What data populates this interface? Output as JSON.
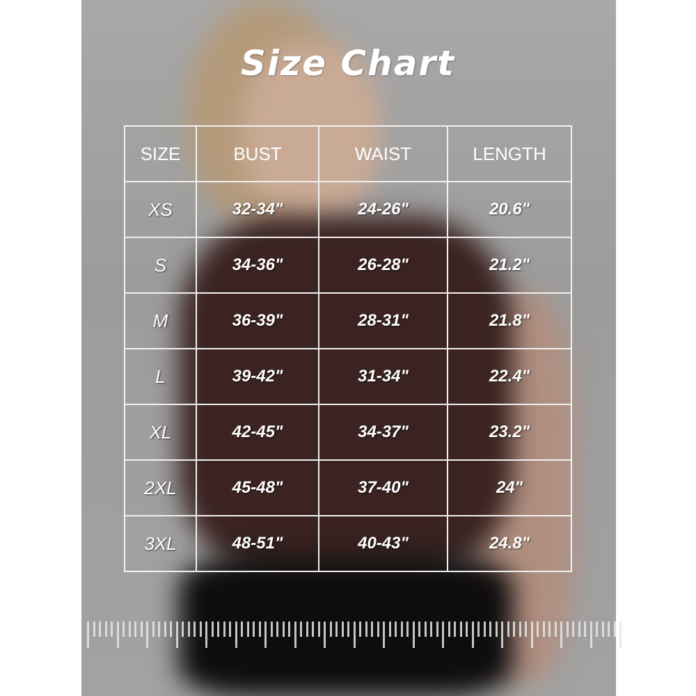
{
  "title": "Size Chart",
  "table": {
    "headers": [
      "SIZE",
      "BUST",
      "WAIST",
      "LENGTH"
    ],
    "rows": [
      [
        "XS",
        "32-34\"",
        "24-26\"",
        "20.6\""
      ],
      [
        "S",
        "34-36\"",
        "26-28\"",
        "21.2\""
      ],
      [
        "M",
        "36-39\"",
        "28-31\"",
        "21.8\""
      ],
      [
        "L",
        "39-42\"",
        "31-34\"",
        "22.4\""
      ],
      [
        "XL",
        "42-45\"",
        "34-37\"",
        "23.2\""
      ],
      [
        "2XL",
        "45-48\"",
        "37-40\"",
        "24\""
      ],
      [
        "3XL",
        "48-51\"",
        "40-43\"",
        "24.8\""
      ]
    ]
  },
  "colors": {
    "background": "#a0a0a0",
    "shirt": "#3a2321",
    "pants": "#0e0c0c",
    "grid": "#f2f2f2"
  }
}
